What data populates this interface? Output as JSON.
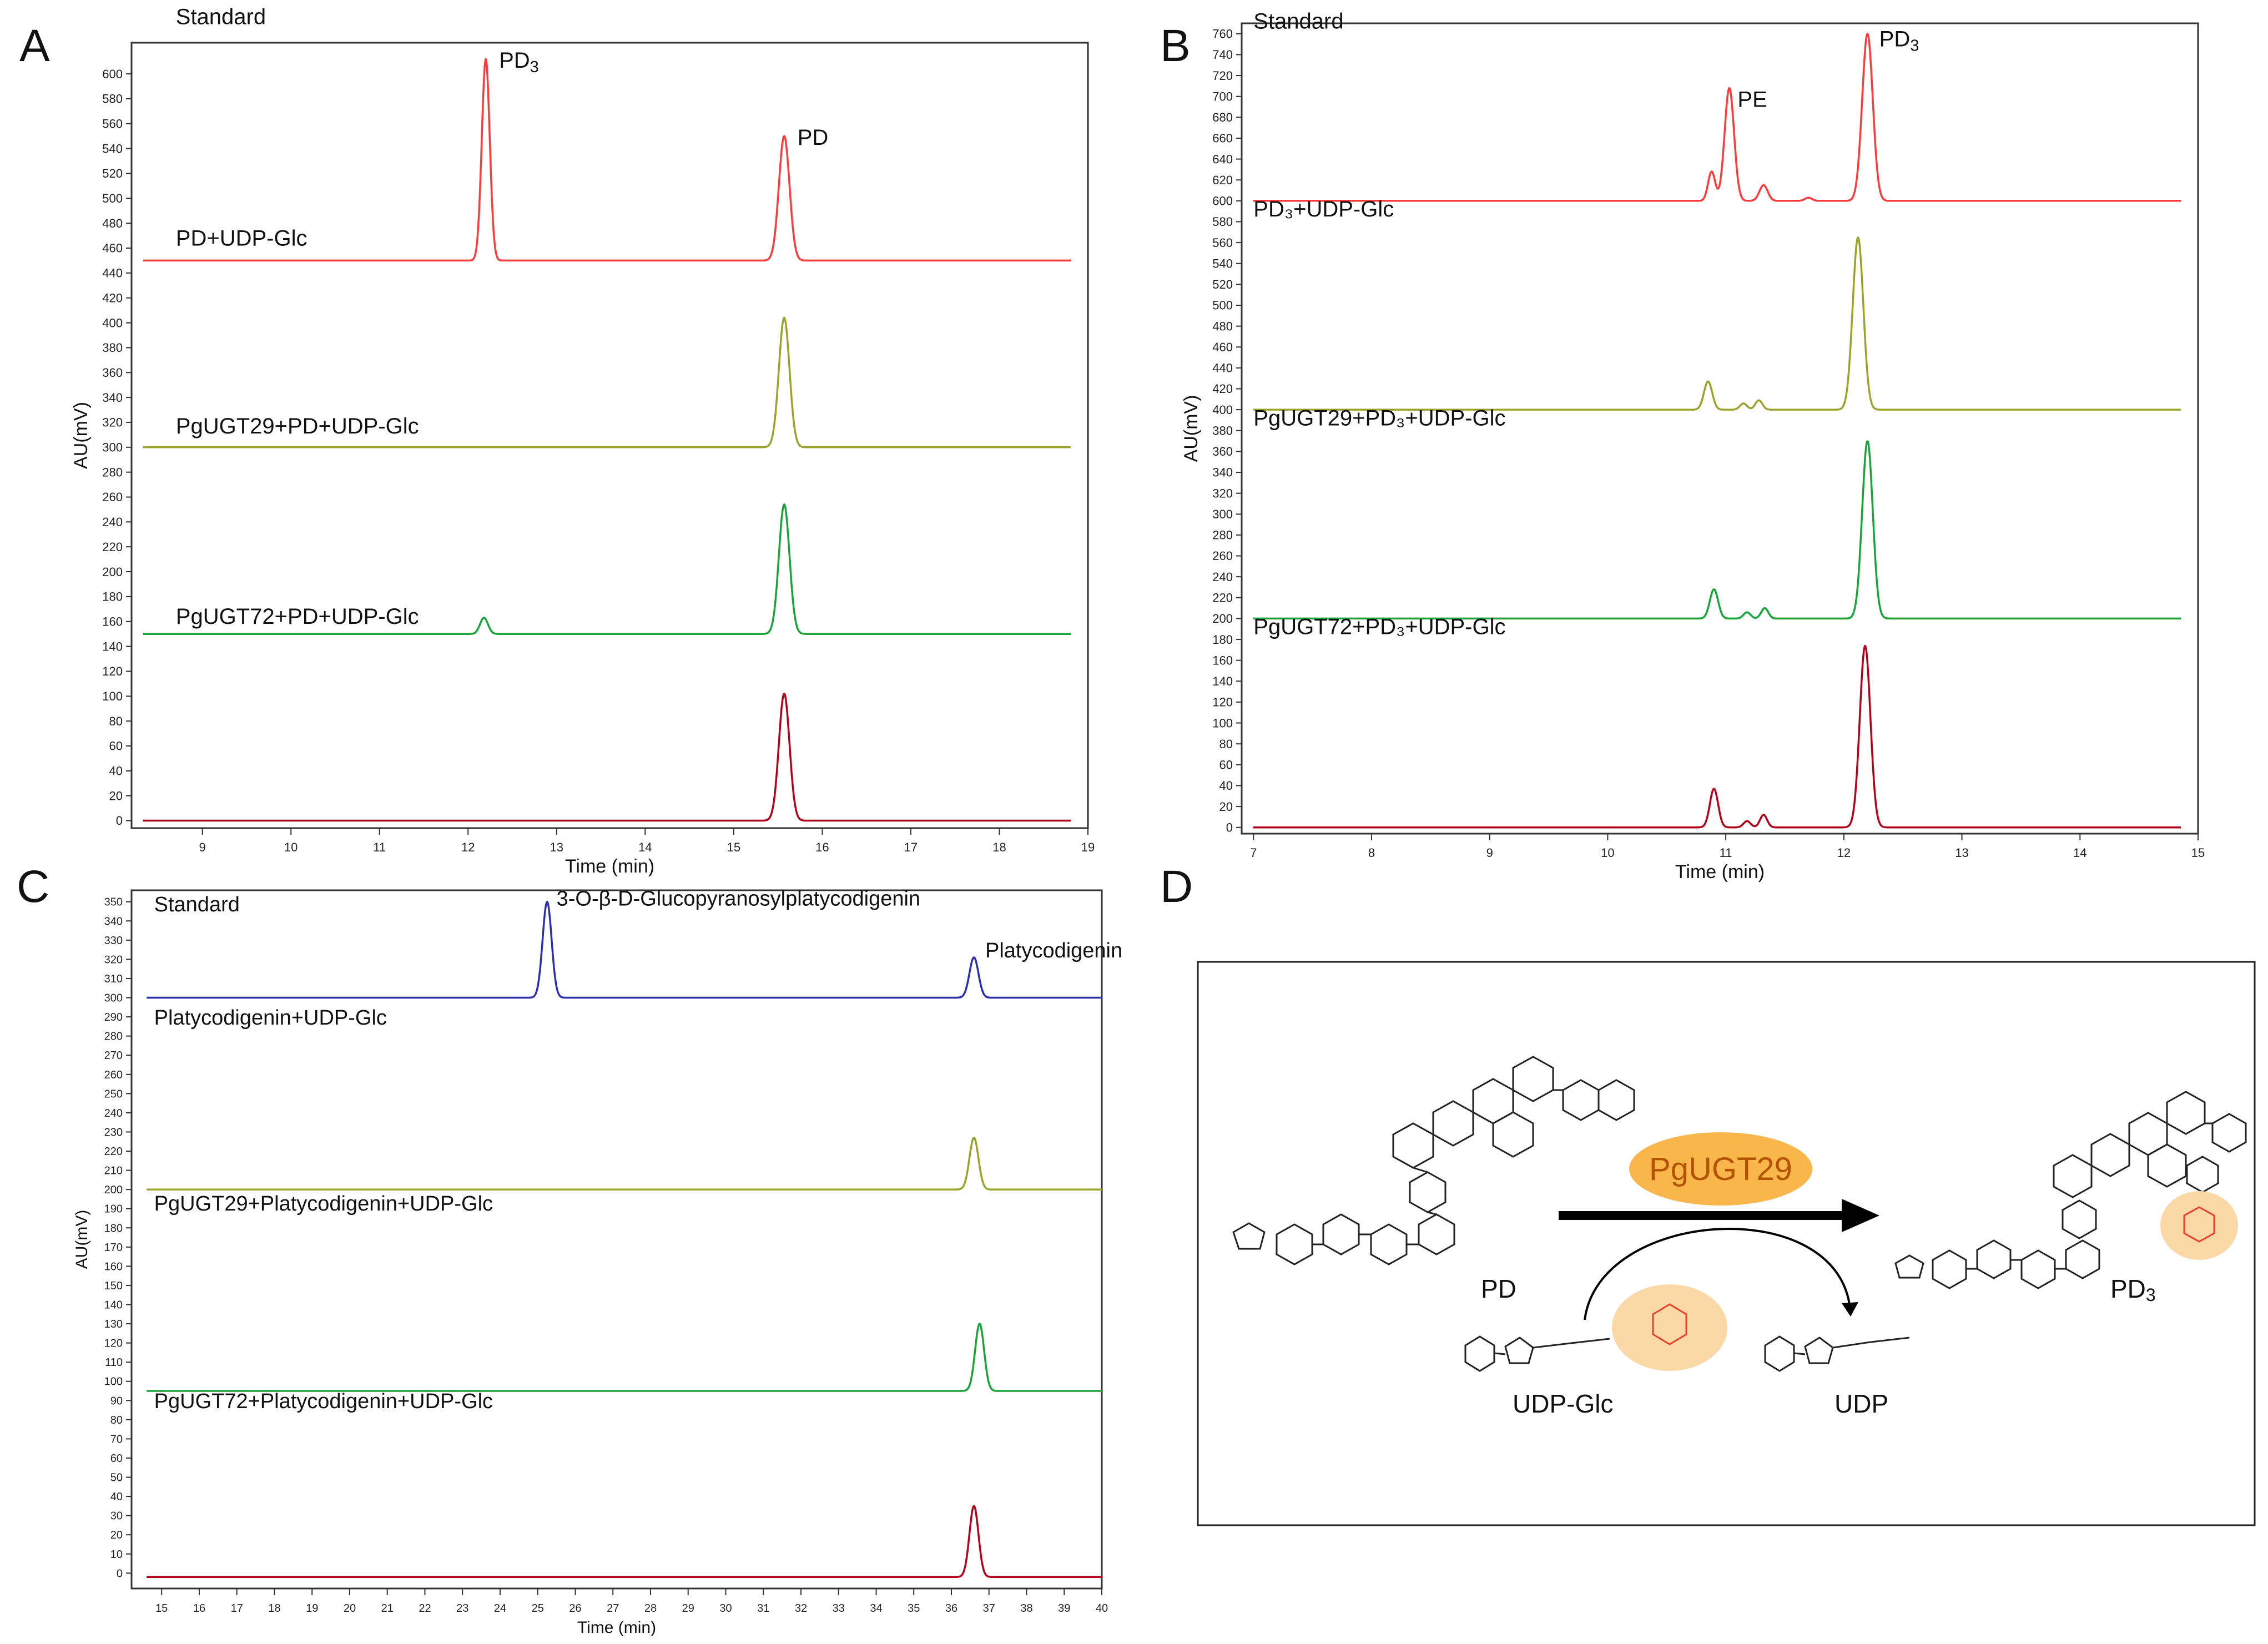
{
  "figure_labels": {
    "a": "A",
    "b": "B",
    "c": "C",
    "d": "D"
  },
  "colors": {
    "standard_red": "#ff3b3b",
    "olive": "#9aa32a",
    "green": "#1aa33a",
    "darkred": "#b3001b",
    "blue": "#2b2fb0",
    "enzyme_fill": "#f9b64a",
    "enzyme_text": "#b35400",
    "glucose_fill": "#fbd9a6",
    "glucose_struct": "#e8412a"
  },
  "chart_data": [
    {
      "panel": "A",
      "type": "line",
      "xlabel": "Time (min)",
      "ylabel": "AU(mV)",
      "xlim": [
        8.2,
        19
      ],
      "xticks": [
        9,
        10,
        11,
        12,
        13,
        14,
        15,
        16,
        17,
        18,
        19
      ],
      "ylim": [
        -6,
        625
      ],
      "ytick_start": 0,
      "ytick_end": 600,
      "ytick_step": 20,
      "series": [
        {
          "name": "Standard",
          "color_key": "standard_red",
          "baseline": 450,
          "peaks": [
            {
              "t": 12.2,
              "h": 162,
              "w": 0.045,
              "label": "PD3"
            },
            {
              "t": 15.57,
              "h": 100,
              "w": 0.06,
              "label": "PD"
            }
          ]
        },
        {
          "name": "PD+UDP-Glc",
          "color_key": "olive",
          "baseline": 300,
          "peaks": [
            {
              "t": 15.57,
              "h": 104,
              "w": 0.06
            }
          ]
        },
        {
          "name": "PgUGT29+PD+UDP-Glc",
          "color_key": "green",
          "baseline": 150,
          "peaks": [
            {
              "t": 12.18,
              "h": 13,
              "w": 0.045
            },
            {
              "t": 15.57,
              "h": 104,
              "w": 0.06
            }
          ]
        },
        {
          "name": "PgUGT72+PD+UDP-Glc",
          "color_key": "darkred",
          "baseline": 0,
          "peaks": [
            {
              "t": 15.57,
              "h": 102,
              "w": 0.06
            }
          ]
        }
      ],
      "peak_labels": [
        {
          "text": "PD",
          "sub": "3",
          "t": 12.35,
          "y": 605
        },
        {
          "text": "PD",
          "sub": "",
          "t": 15.72,
          "y": 543
        }
      ]
    },
    {
      "panel": "B",
      "type": "line",
      "xlabel": "Time (min)",
      "ylabel": "AU(mV)",
      "xlim": [
        6.9,
        15
      ],
      "xticks": [
        7,
        8,
        9,
        10,
        11,
        12,
        13,
        14,
        15
      ],
      "ylim": [
        -6,
        770
      ],
      "ytick_start": 0,
      "ytick_end": 760,
      "ytick_step": 20,
      "series": [
        {
          "name": "Standard",
          "color_key": "standard_red",
          "baseline": 600,
          "peaks": [
            {
              "t": 10.88,
              "h": 28,
              "w": 0.03
            },
            {
              "t": 11.03,
              "h": 108,
              "w": 0.04
            },
            {
              "t": 11.32,
              "h": 15,
              "w": 0.035
            },
            {
              "t": 11.7,
              "h": 3,
              "w": 0.03
            },
            {
              "t": 12.2,
              "h": 160,
              "w": 0.045
            }
          ]
        },
        {
          "name": "PD3+UDP-Glc",
          "color_key": "olive",
          "baseline": 400,
          "peaks": [
            {
              "t": 10.85,
              "h": 27,
              "w": 0.035
            },
            {
              "t": 11.15,
              "h": 6,
              "w": 0.03
            },
            {
              "t": 11.28,
              "h": 9,
              "w": 0.03
            },
            {
              "t": 12.12,
              "h": 165,
              "w": 0.045
            }
          ]
        },
        {
          "name": "PgUGT29+PD3+UDP-Glc",
          "color_key": "green",
          "baseline": 200,
          "peaks": [
            {
              "t": 10.9,
              "h": 28,
              "w": 0.035
            },
            {
              "t": 11.18,
              "h": 6,
              "w": 0.03
            },
            {
              "t": 11.33,
              "h": 10,
              "w": 0.03
            },
            {
              "t": 12.2,
              "h": 170,
              "w": 0.045
            }
          ]
        },
        {
          "name": "PgUGT72+PD3+UDP-Glc",
          "color_key": "darkred",
          "baseline": 0,
          "peaks": [
            {
              "t": 10.9,
              "h": 37,
              "w": 0.035
            },
            {
              "t": 11.18,
              "h": 6,
              "w": 0.03
            },
            {
              "t": 11.32,
              "h": 12,
              "w": 0.03
            },
            {
              "t": 12.18,
              "h": 174,
              "w": 0.045
            }
          ]
        }
      ],
      "peak_labels": [
        {
          "text": "PE",
          "sub": "",
          "t": 11.1,
          "y": 690
        },
        {
          "text": "PD",
          "sub": "3",
          "t": 12.3,
          "y": 748
        }
      ]
    },
    {
      "panel": "C",
      "type": "line",
      "xlabel": "Time (min)",
      "ylabel": "AU(mV)",
      "xlim": [
        14.2,
        40
      ],
      "xticks": [
        15,
        16,
        17,
        18,
        19,
        20,
        21,
        22,
        23,
        24,
        25,
        26,
        27,
        28,
        29,
        30,
        31,
        32,
        33,
        34,
        35,
        36,
        37,
        38,
        39,
        40
      ],
      "ylim": [
        -8,
        356
      ],
      "ytick_start": 0,
      "ytick_end": 350,
      "ytick_step": 10,
      "series": [
        {
          "name": "Standard",
          "color_key": "blue",
          "baseline": 300,
          "peaks": [
            {
              "t": 25.25,
              "h": 50,
              "w": 0.12
            },
            {
              "t": 36.6,
              "h": 21,
              "w": 0.12
            }
          ]
        },
        {
          "name": "Platycodigenin+UDP-Glc",
          "color_key": "olive",
          "baseline": 200,
          "peaks": [
            {
              "t": 36.6,
              "h": 27,
              "w": 0.12
            }
          ]
        },
        {
          "name": "PgUGT29+Platycodigenin+UDP-Glc",
          "color_key": "green",
          "baseline": 95,
          "peaks": [
            {
              "t": 36.75,
              "h": 35,
              "w": 0.12
            }
          ]
        },
        {
          "name": "PgUGT72+Platycodigenin+UDP-Glc",
          "color_key": "darkred",
          "baseline": -2,
          "peaks": [
            {
              "t": 36.6,
              "h": 37,
              "w": 0.12
            }
          ]
        }
      ],
      "peak_labels": [
        {
          "text": "3-O-β-D-Glucopyranosylplatycodigenin",
          "sub": "",
          "t": 25.5,
          "y": 348
        },
        {
          "text": "Platycodigenin",
          "sub": "",
          "t": 36.9,
          "y": 321
        }
      ]
    }
  ],
  "scheme": {
    "enzyme": "PgUGT29",
    "substrate": "PD",
    "product": "PD",
    "product_sub": "3",
    "donor": "UDP-Glc",
    "byproduct": "UDP"
  }
}
